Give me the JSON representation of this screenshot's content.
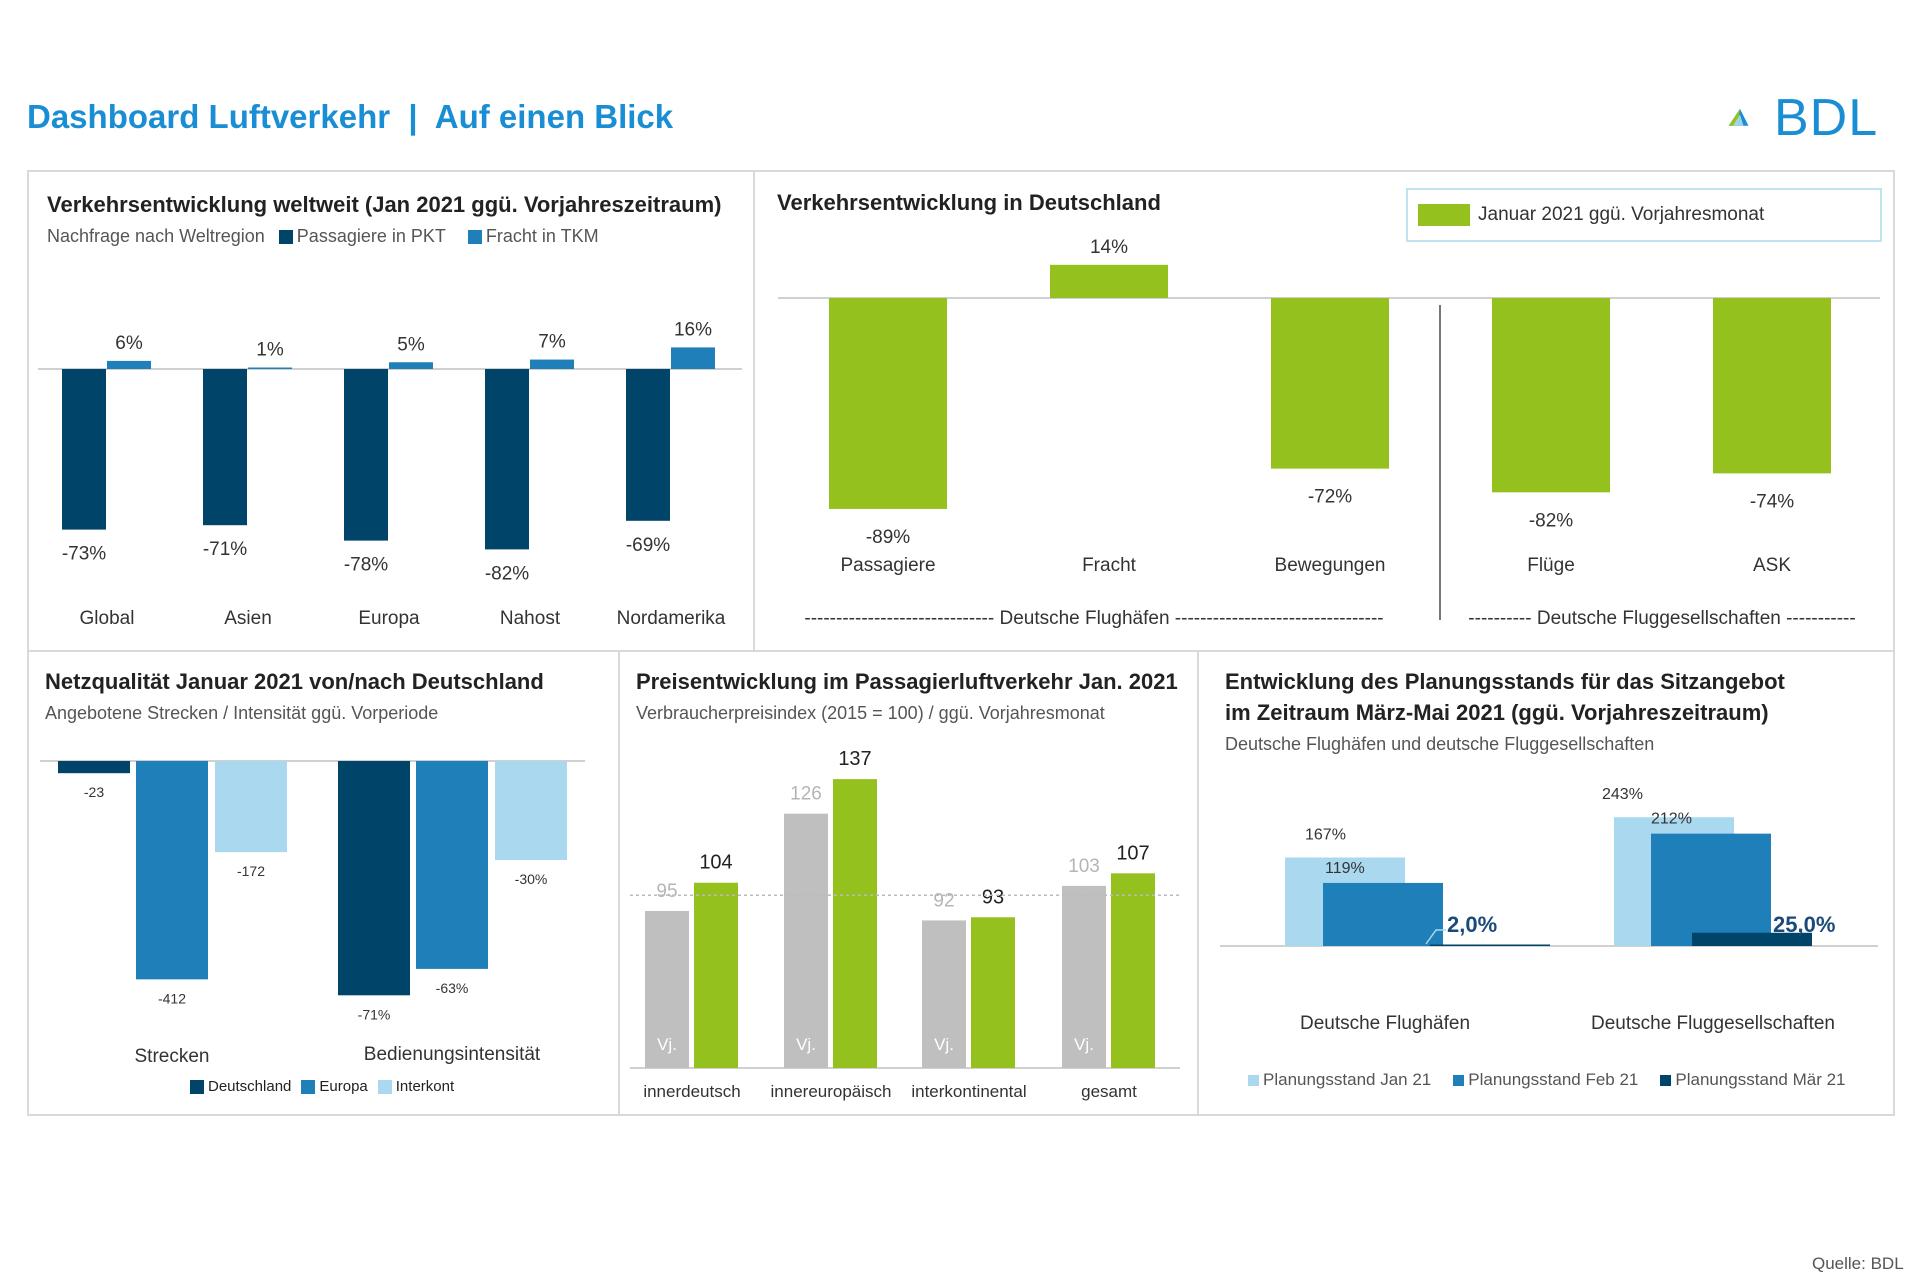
{
  "header": {
    "title": "Dashboard Luftverkehr  |  Auf einen Blick",
    "logo_text": "BDL"
  },
  "footer": {
    "source": "Quelle: BDL"
  },
  "colors": {
    "dark_blue": "#004469",
    "mid_blue": "#1f80b9",
    "light_blue": "#a9d8ef",
    "green": "#95c11f",
    "gray": "#bfbfbf",
    "header_blue": "#1a8ed4"
  },
  "panel1": {
    "title": "Verkehrsentwicklung weltweit (Jan 2021 ggü. Vorjahreszeitraum)",
    "subtitle": "Nachfrage nach Weltregion",
    "legend": [
      "Passagiere in PKT",
      "Fracht in TKM"
    ]
  },
  "panel2": {
    "title": "Verkehrsentwicklung in Deutschland",
    "legend": "Januar 2021 ggü. Vorjahresmonat",
    "group_airports": "Deutsche Flughäfen",
    "group_airlines": "Deutsche Fluggesellschaften",
    "group_airports_line": "------------------------------ Deutsche Flughäfen ---------------------------------",
    "group_airlines_line": "---------- Deutsche Fluggesellschaften -----------"
  },
  "panel3": {
    "title": "Netzqualität Januar 2021 von/nach Deutschland",
    "subtitle": "Angebotene Strecken / Intensität ggü. Vorperiode",
    "legend": [
      "Deutschland",
      "Europa",
      "Interkont"
    ]
  },
  "panel4": {
    "title": "Preisentwicklung im Passagierluftverkehr Jan. 2021",
    "subtitle": "Verbraucherpreisindex (2015 = 100) / ggü. Vorjahresmonat",
    "prev_year_label": "Vj."
  },
  "panel5": {
    "title_line1": "Entwicklung des Planungsstands für das Sitzangebot",
    "title_line2": "im Zeitraum März-Mai 2021 (ggü. Vorjahreszeitraum)",
    "subtitle": "Deutsche Flughäfen und deutsche Fluggesellschaften",
    "legend": [
      "Planungsstand Jan 21",
      "Planungsstand Feb 21",
      "Planungsstand Mär 21"
    ]
  },
  "chart_data": [
    {
      "id": "weltweit",
      "type": "bar",
      "title": "Verkehrsentwicklung weltweit (Jan 2021 ggü. Vorjahreszeitraum)",
      "categories": [
        "Global",
        "Asien",
        "Europa",
        "Nahost",
        "Nordamerika"
      ],
      "series": [
        {
          "name": "Passagiere in PKT",
          "values": [
            -73,
            -71,
            -78,
            -82,
            -69
          ],
          "labels": [
            "-73%",
            "-71%",
            "-78%",
            "-82%",
            "-69%"
          ]
        },
        {
          "name": "Fracht in TKM",
          "values": [
            6,
            1,
            5,
            7,
            16
          ],
          "labels": [
            "6%",
            "1%",
            "5%",
            "7%",
            "16%"
          ]
        }
      ]
    },
    {
      "id": "deutschland",
      "type": "bar",
      "title": "Verkehrsentwicklung in Deutschland",
      "categories": [
        "Passagiere",
        "Fracht",
        "Bewegungen",
        "Flüge",
        "ASK"
      ],
      "series": [
        {
          "name": "Januar 2021 ggü. Vorjahresmonat",
          "values": [
            -89,
            14,
            -72,
            -82,
            -74
          ],
          "labels": [
            "-89%",
            "14%",
            "-72%",
            "-82%",
            "-74%"
          ]
        }
      ]
    },
    {
      "id": "netzqualitaet",
      "type": "bar",
      "title": "Netzqualität Januar 2021 von/nach Deutschland",
      "categories": [
        "Strecken",
        "Bedienungsintensität"
      ],
      "series": [
        {
          "name": "Deutschland",
          "labels": [
            "-23",
            "-71%"
          ]
        },
        {
          "name": "Europa",
          "labels": [
            "-412",
            "-63%"
          ]
        },
        {
          "name": "Interkont",
          "labels": [
            "-172",
            "-30%"
          ]
        }
      ],
      "strecken_values": [
        -23,
        -412,
        -172
      ],
      "intensitaet_values": [
        -71,
        -63,
        -30
      ]
    },
    {
      "id": "preise",
      "type": "bar",
      "title": "Preisentwicklung im Passagierluftverkehr Jan. 2021",
      "categories": [
        "innerdeutsch",
        "innereuropäisch",
        "interkontinental",
        "gesamt"
      ],
      "series": [
        {
          "name": "Vj.",
          "values": [
            95,
            126,
            92,
            103
          ]
        },
        {
          "name": "Jan. 2021",
          "values": [
            104,
            137,
            93,
            107
          ]
        }
      ],
      "reference": 100
    },
    {
      "id": "planungsstand",
      "type": "bar",
      "title": "Entwicklung des Planungsstands für das Sitzangebot im Zeitraum März-Mai 2021 (ggü. Vorjahreszeitraum)",
      "categories": [
        "Deutsche Flughäfen",
        "Deutsche Fluggesellschaften"
      ],
      "series": [
        {
          "name": "Planungsstand Jan 21",
          "values": [
            167,
            243
          ],
          "labels": [
            "167%",
            "243%"
          ]
        },
        {
          "name": "Planungsstand Feb 21",
          "values": [
            119,
            212
          ],
          "labels": [
            "119%",
            "212%"
          ]
        },
        {
          "name": "Planungsstand Mär 21",
          "values": [
            2.0,
            25.0
          ],
          "labels": [
            "2,0%",
            "25,0%"
          ]
        }
      ]
    }
  ]
}
